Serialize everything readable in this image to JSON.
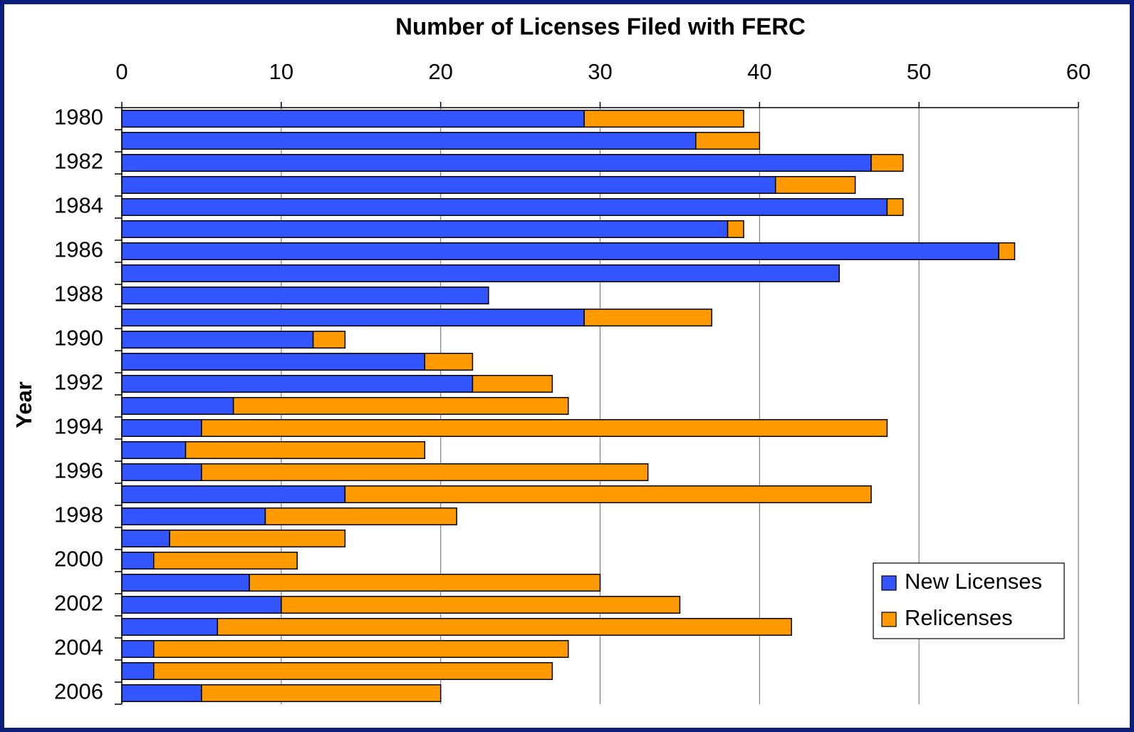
{
  "chart_data": {
    "type": "bar",
    "orientation": "horizontal",
    "stacked": true,
    "title": "Number of Licenses Filed with FERC",
    "ylabel": "Year",
    "categories": [
      "1980",
      null,
      "1982",
      null,
      "1984",
      null,
      "1986",
      null,
      "1988",
      null,
      "1990",
      null,
      "1992",
      null,
      "1994",
      null,
      "1996",
      null,
      "1998",
      null,
      "2000",
      null,
      "2002",
      null,
      "2004",
      null,
      "2006"
    ],
    "series": [
      {
        "name": "New Licenses",
        "color": "#3355ff",
        "values": [
          29,
          36,
          47,
          41,
          48,
          38,
          55,
          45,
          23,
          29,
          12,
          19,
          22,
          7,
          5,
          4,
          5,
          14,
          9,
          3,
          2,
          8,
          10,
          6,
          2,
          2,
          5
        ]
      },
      {
        "name": "Relicenses",
        "color": "#ff9900",
        "values": [
          10,
          4,
          2,
          5,
          1,
          1,
          1,
          0,
          0,
          8,
          2,
          3,
          5,
          21,
          43,
          15,
          28,
          33,
          12,
          11,
          9,
          22,
          25,
          36,
          26,
          25,
          15
        ]
      }
    ],
    "xlim": [
      0,
      60
    ],
    "xticks": [
      0,
      10,
      20,
      30,
      40,
      50,
      60
    ],
    "x_axis_position": "top",
    "grid": true,
    "legend": "lower right"
  }
}
